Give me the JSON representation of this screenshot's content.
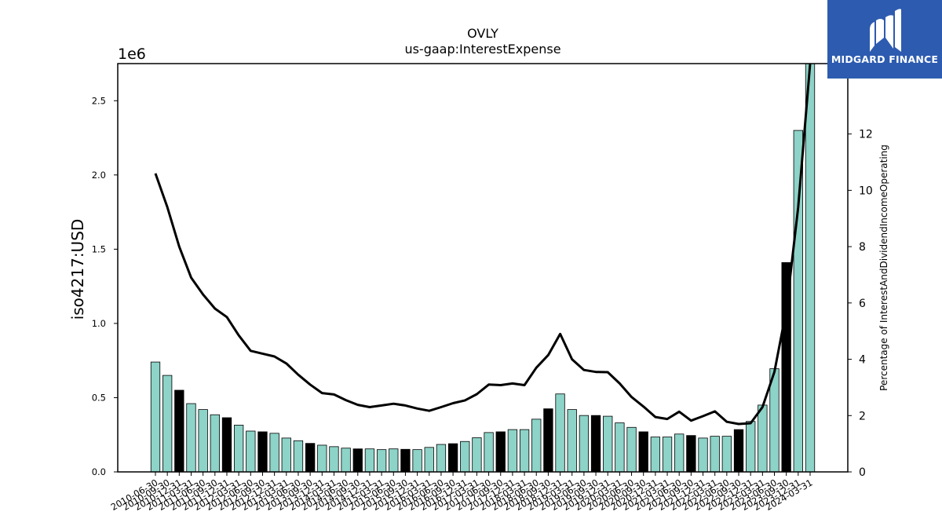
{
  "brand": {
    "name": "MIDGARD FINANCE",
    "bg_color": "#2d5bb0"
  },
  "chart_data": {
    "type": "bar+line",
    "title": "OVLY",
    "subtitle": "us-gaap:InterestExpense",
    "ylabel": "iso4217:USD",
    "y_offset_label": "1e6",
    "y2label": "Percentage of InterestAndDividendIncomeOperating",
    "ylim": [
      0,
      2750000
    ],
    "y2lim": [
      0,
      14.5
    ],
    "yticks": [
      0.0,
      0.5,
      1.0,
      1.5,
      2.0,
      2.5
    ],
    "y2ticks": [
      0,
      2,
      4,
      6,
      8,
      10,
      12
    ],
    "bar_colors": {
      "quarterly": "#8dd3c7",
      "annual": "#000000"
    },
    "categories": [
      "2010-06-30",
      "2010-09-30",
      "2010-12-31",
      "2011-03-31",
      "2011-06-30",
      "2011-09-30",
      "2011-12-31",
      "2012-03-31",
      "2012-06-30",
      "2012-09-30",
      "2012-12-31",
      "2013-03-31",
      "2013-06-30",
      "2013-09-30",
      "2013-12-31",
      "2014-03-31",
      "2014-06-30",
      "2014-09-30",
      "2014-12-31",
      "2015-03-31",
      "2015-06-30",
      "2015-09-30",
      "2015-12-31",
      "2016-03-31",
      "2016-06-30",
      "2016-09-30",
      "2016-12-31",
      "2017-03-31",
      "2017-06-30",
      "2017-09-30",
      "2017-12-31",
      "2018-03-31",
      "2018-06-30",
      "2018-09-30",
      "2018-12-31",
      "2019-03-31",
      "2019-06-30",
      "2019-09-30",
      "2019-12-31",
      "2020-03-31",
      "2020-06-30",
      "2020-09-30",
      "2020-12-31",
      "2021-03-31",
      "2021-06-30",
      "2021-09-30",
      "2021-12-31",
      "2022-03-31",
      "2022-06-30",
      "2022-09-30",
      "2022-12-31",
      "2023-03-31",
      "2023-06-30",
      "2023-09-30",
      "2023-12-31",
      "2024-03-31"
    ],
    "series": [
      {
        "type": "bar",
        "values": [
          740000,
          650000,
          550000,
          460000,
          420000,
          385000,
          365000,
          315000,
          275000,
          270000,
          260000,
          228000,
          210000,
          192000,
          180000,
          170000,
          160000,
          155000,
          155000,
          150000,
          155000,
          152000,
          150000,
          165000,
          185000,
          190000,
          205000,
          230000,
          265000,
          270000,
          285000,
          285000,
          355000,
          425000,
          525000,
          420000,
          380000,
          380000,
          375000,
          330000,
          300000,
          270000,
          235000,
          235000,
          255000,
          245000,
          228000,
          240000,
          240000,
          285000,
          340000,
          450000,
          695000,
          1410000,
          2300000,
          2750000
        ],
        "annual": [
          false,
          false,
          true,
          false,
          false,
          false,
          true,
          false,
          false,
          true,
          false,
          false,
          false,
          true,
          false,
          false,
          false,
          true,
          false,
          false,
          false,
          true,
          false,
          false,
          false,
          true,
          false,
          false,
          false,
          true,
          false,
          false,
          false,
          true,
          false,
          false,
          false,
          true,
          false,
          false,
          false,
          true,
          false,
          false,
          false,
          true,
          false,
          false,
          false,
          true,
          false,
          false,
          false,
          true,
          false,
          false
        ]
      },
      {
        "type": "line",
        "axis": "right",
        "values": [
          10.6,
          9.4,
          8.0,
          6.9,
          6.3,
          5.8,
          5.5,
          4.85,
          4.3,
          4.2,
          4.1,
          3.85,
          3.45,
          3.1,
          2.8,
          2.75,
          2.55,
          2.38,
          2.3,
          2.36,
          2.42,
          2.36,
          2.25,
          2.17,
          2.3,
          2.44,
          2.54,
          2.76,
          3.1,
          3.08,
          3.14,
          3.08,
          3.7,
          4.15,
          4.9,
          4.0,
          3.62,
          3.55,
          3.54,
          3.14,
          2.66,
          2.32,
          1.95,
          1.88,
          2.14,
          1.82,
          1.98,
          2.15,
          1.78,
          1.7,
          1.73,
          2.3,
          3.55,
          5.75,
          9.4,
          14.5
        ]
      }
    ]
  }
}
